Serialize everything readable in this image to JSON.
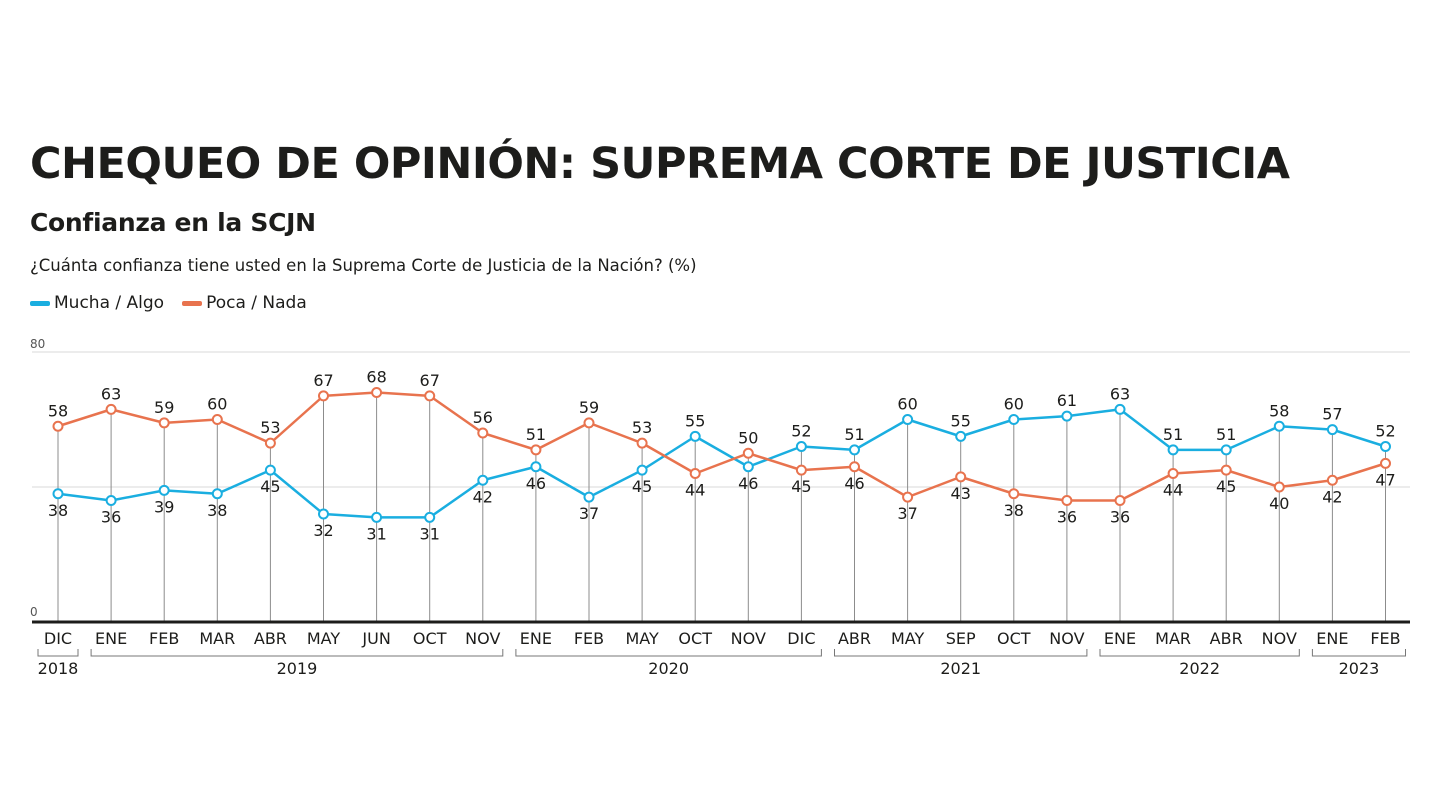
{
  "header": {
    "title": "CHEQUEO DE OPINIÓN: SUPREMA CORTE DE JUSTICIA",
    "subtitle": "Confianza en la SCJN",
    "question": "¿Cuánta confianza tiene usted en la Suprema Corte de Justicia de la Nación? (%)"
  },
  "colors": {
    "series_1": "#1aaee0",
    "series_2": "#e8734e",
    "axis": "#1d1d1b",
    "grid": "#d9d9d9",
    "drop": "#8c8c8c"
  },
  "chart_data": {
    "type": "line",
    "x": [
      "DIC",
      "ENE",
      "FEB",
      "MAR",
      "ABR",
      "MAY",
      "JUN",
      "OCT",
      "NOV",
      "ENE",
      "FEB",
      "MAY",
      "OCT",
      "NOV",
      "DIC",
      "ABR",
      "MAY",
      "SEP",
      "OCT",
      "NOV",
      "ENE",
      "MAR",
      "ABR",
      "NOV",
      "ENE",
      "FEB"
    ],
    "year_groups": [
      {
        "label": "2018",
        "start": 0,
        "end": 0
      },
      {
        "label": "2019",
        "start": 1,
        "end": 8
      },
      {
        "label": "2020",
        "start": 9,
        "end": 14
      },
      {
        "label": "2021",
        "start": 15,
        "end": 19
      },
      {
        "label": "2022",
        "start": 20,
        "end": 23
      },
      {
        "label": "2023",
        "start": 24,
        "end": 25
      }
    ],
    "series": [
      {
        "name": "Mucha / Algo",
        "color": "#1aaee0",
        "values": [
          38,
          36,
          39,
          38,
          45,
          32,
          31,
          31,
          42,
          46,
          37,
          45,
          55,
          46,
          52,
          51,
          60,
          55,
          60,
          61,
          63,
          51,
          51,
          58,
          57,
          52
        ]
      },
      {
        "name": "Poca / Nada",
        "color": "#e8734e",
        "values": [
          58,
          63,
          59,
          60,
          53,
          67,
          68,
          67,
          56,
          51,
          59,
          53,
          44,
          50,
          45,
          46,
          37,
          43,
          38,
          36,
          36,
          44,
          45,
          40,
          42,
          47
        ]
      }
    ],
    "ylim": [
      0,
      80
    ],
    "y_ticks": [
      0,
      80
    ],
    "gridlines": [
      40,
      80
    ],
    "legend_position": "top-left"
  }
}
